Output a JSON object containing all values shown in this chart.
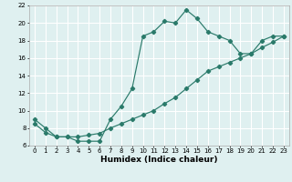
{
  "title": "",
  "xlabel": "Humidex (Indice chaleur)",
  "xlim": [
    -0.5,
    23.5
  ],
  "ylim": [
    6,
    22
  ],
  "xticks": [
    0,
    1,
    2,
    3,
    4,
    5,
    6,
    7,
    8,
    9,
    10,
    11,
    12,
    13,
    14,
    15,
    16,
    17,
    18,
    19,
    20,
    21,
    22,
    23
  ],
  "yticks": [
    6,
    8,
    10,
    12,
    14,
    16,
    18,
    20,
    22
  ],
  "line1_x": [
    0,
    1,
    2,
    3,
    4,
    5,
    6,
    7,
    8,
    9,
    10,
    11,
    12,
    13,
    14,
    15,
    16,
    17,
    18,
    19,
    20,
    21,
    22,
    23
  ],
  "line1_y": [
    9.0,
    8.0,
    7.0,
    7.0,
    6.5,
    6.5,
    6.5,
    9.0,
    10.5,
    12.5,
    18.5,
    19.0,
    20.2,
    20.0,
    21.5,
    20.5,
    19.0,
    18.5,
    18.0,
    16.5,
    16.5,
    18.0,
    18.5,
    18.5
  ],
  "line2_x": [
    0,
    1,
    2,
    3,
    4,
    5,
    6,
    7,
    8,
    9,
    10,
    11,
    12,
    13,
    14,
    15,
    16,
    17,
    18,
    19,
    20,
    21,
    22,
    23
  ],
  "line2_y": [
    8.5,
    7.5,
    7.0,
    7.0,
    7.0,
    7.2,
    7.4,
    8.0,
    8.5,
    9.0,
    9.5,
    10.0,
    10.8,
    11.5,
    12.5,
    13.5,
    14.5,
    15.0,
    15.5,
    16.0,
    16.5,
    17.2,
    17.8,
    18.5
  ],
  "line_color": "#2a7a6a",
  "bg_color": "#dff0f0",
  "grid_color": "#ffffff",
  "marker": "D",
  "marker_size": 2.2,
  "tick_fontsize": 5.0,
  "xlabel_fontsize": 6.5,
  "linewidth": 0.85
}
